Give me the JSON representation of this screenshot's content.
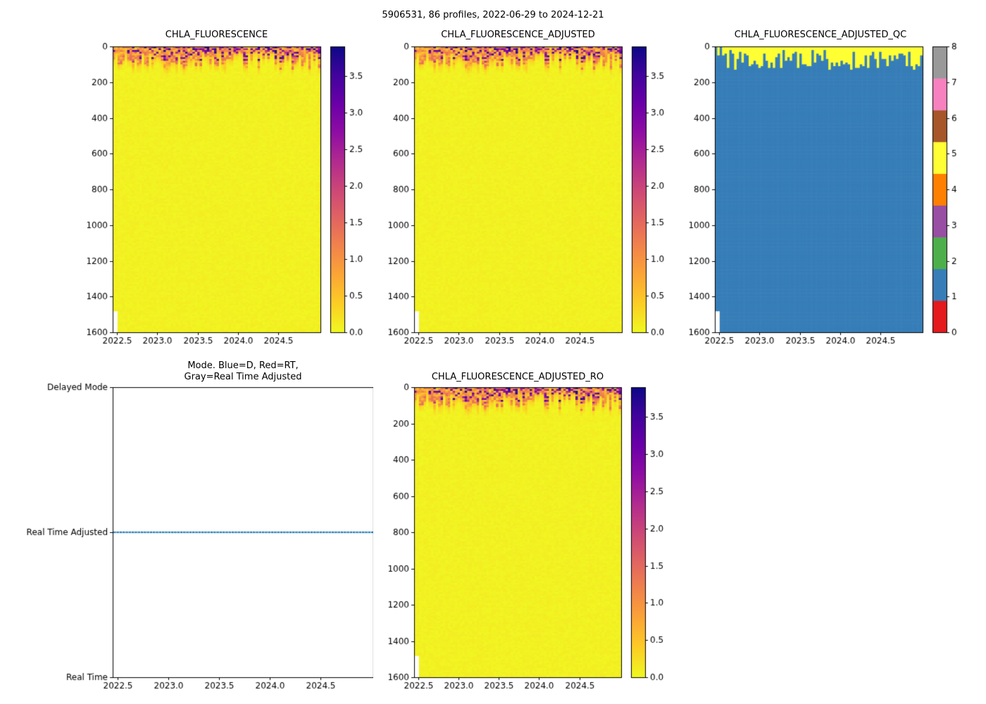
{
  "figure": {
    "title": "5906531, 86 profiles, 2022-06-29 to 2024-12-21",
    "background": "#ffffff",
    "text_color": "#000000"
  },
  "style": {
    "axis_color": "#000000",
    "marker_color": "#1f77b4",
    "plasma_r_stops": [
      [
        0.0,
        "#f0f921"
      ],
      [
        0.1,
        "#fcce25"
      ],
      [
        0.2,
        "#fca636"
      ],
      [
        0.3,
        "#f2844b"
      ],
      [
        0.4,
        "#e16462"
      ],
      [
        0.5,
        "#cc4778"
      ],
      [
        0.6,
        "#b12a90"
      ],
      [
        0.7,
        "#8f0da4"
      ],
      [
        0.8,
        "#6a00a8"
      ],
      [
        0.9,
        "#41049d"
      ],
      [
        1.0,
        "#0d0887"
      ]
    ],
    "qc_colors": [
      "#e41a1c",
      "#377eb8",
      "#4daf4a",
      "#984ea3",
      "#ff7f00",
      "#ffff33",
      "#a65628",
      "#f781bf",
      "#999999"
    ]
  },
  "chart_data": [
    {
      "id": "chla_fluorescence",
      "type": "heatmap",
      "title": "CHLA_FLUORESCENCE",
      "x_range": [
        2022.45,
        2025.02
      ],
      "x_ticks": [
        2022.5,
        2023.0,
        2023.5,
        2024.0,
        2024.5
      ],
      "x_tick_labels": [
        "2022.5",
        "2023.0",
        "2023.5",
        "2024.0",
        "2024.5"
      ],
      "y_range": [
        0,
        1600
      ],
      "y_axis_inverted": true,
      "y_ticks": [
        0,
        200,
        400,
        600,
        800,
        1000,
        1200,
        1400,
        1600
      ],
      "y_tick_labels": [
        "0",
        "200",
        "400",
        "600",
        "800",
        "1000",
        "1200",
        "1400",
        "1600"
      ],
      "n_profiles": 86,
      "n_depth_bins": 160,
      "value_range": [
        0,
        3.9
      ],
      "colorbar_tick_values": [
        0.0,
        0.5,
        1.0,
        1.5,
        2.0,
        2.5,
        3.0,
        3.5
      ],
      "colorbar_tick_labels": [
        "0.0",
        "0.5",
        "1.0",
        "1.5",
        "2.0",
        "2.5",
        "3.0",
        "3.5"
      ],
      "pattern": {
        "seed": 11,
        "background_value": [
          0.02,
          0.12
        ],
        "surface_band_depth": [
          30,
          130
        ],
        "surface_value": [
          0.35,
          1.5
        ],
        "peak_value": [
          2.2,
          3.9
        ],
        "peak_fraction": 0.28,
        "missing_bottom_profiles": 2,
        "missing_below_depth": 1480
      }
    },
    {
      "id": "chla_fluorescence_adjusted",
      "type": "heatmap",
      "title": "CHLA_FLUORESCENCE_ADJUSTED",
      "x_range": [
        2022.45,
        2025.02
      ],
      "x_ticks": [
        2022.5,
        2023.0,
        2023.5,
        2024.0,
        2024.5
      ],
      "x_tick_labels": [
        "2022.5",
        "2023.0",
        "2023.5",
        "2024.0",
        "2024.5"
      ],
      "y_range": [
        0,
        1600
      ],
      "y_axis_inverted": true,
      "y_ticks": [
        0,
        200,
        400,
        600,
        800,
        1000,
        1200,
        1400,
        1600
      ],
      "y_tick_labels": [
        "0",
        "200",
        "400",
        "600",
        "800",
        "1000",
        "1200",
        "1400",
        "1600"
      ],
      "n_profiles": 86,
      "n_depth_bins": 160,
      "value_range": [
        0,
        3.9
      ],
      "colorbar_tick_values": [
        0.0,
        0.5,
        1.0,
        1.5,
        2.0,
        2.5,
        3.0,
        3.5
      ],
      "colorbar_tick_labels": [
        "0.0",
        "0.5",
        "1.0",
        "1.5",
        "2.0",
        "2.5",
        "3.0",
        "3.5"
      ],
      "pattern": {
        "seed": 11,
        "background_value": [
          0.02,
          0.12
        ],
        "surface_band_depth": [
          30,
          130
        ],
        "surface_value": [
          0.35,
          1.5
        ],
        "peak_value": [
          2.2,
          3.9
        ],
        "peak_fraction": 0.28,
        "missing_bottom_profiles": 2,
        "missing_below_depth": 1480
      }
    },
    {
      "id": "chla_fluorescence_adjusted_qc",
      "type": "heatmap_discrete",
      "title": "CHLA_FLUORESCENCE_ADJUSTED_QC",
      "x_range": [
        2022.45,
        2025.02
      ],
      "x_ticks": [
        2022.5,
        2023.0,
        2023.5,
        2024.0,
        2024.5
      ],
      "x_tick_labels": [
        "2022.5",
        "2023.0",
        "2023.5",
        "2024.0",
        "2024.5"
      ],
      "y_range": [
        0,
        1600
      ],
      "y_axis_inverted": true,
      "y_ticks": [
        0,
        200,
        400,
        600,
        800,
        1000,
        1200,
        1400,
        1600
      ],
      "y_tick_labels": [
        "0",
        "200",
        "400",
        "600",
        "800",
        "1000",
        "1200",
        "1400",
        "1600"
      ],
      "n_profiles": 86,
      "n_depth_bins": 160,
      "value_range": [
        0,
        8
      ],
      "colorbar_tick_values": [
        0,
        1,
        2,
        3,
        4,
        5,
        6,
        7,
        8
      ],
      "colorbar_tick_labels": [
        "0",
        "1",
        "2",
        "3",
        "4",
        "5",
        "6",
        "7",
        "8"
      ],
      "qc_values": {
        "surface_qc": 5,
        "deep_qc": 1
      },
      "pattern": {
        "seed": 23,
        "surface_band_depth": [
          20,
          130
        ],
        "deep_spike_fraction": 0.08,
        "no_band_profiles": 3,
        "missing_bottom_profiles": 2,
        "missing_below_depth": 1480
      }
    },
    {
      "id": "mode",
      "type": "scatter",
      "title_lines": [
        "Mode. Blue=D, Red=RT,",
        "Gray=Real Time Adjusted"
      ],
      "x_range": [
        2022.45,
        2025.02
      ],
      "x_ticks": [
        2022.5,
        2023.0,
        2023.5,
        2024.0,
        2024.5
      ],
      "x_tick_labels": [
        "2022.5",
        "2023.0",
        "2023.5",
        "2024.0",
        "2024.5"
      ],
      "y_categories": [
        "Real Time",
        "Real Time Adjusted",
        "Delayed Mode"
      ],
      "mode_value": "Real Time Adjusted",
      "n_points": 86,
      "marker_color": "#1f77b4"
    },
    {
      "id": "chla_fluorescence_adjusted_ro",
      "type": "heatmap",
      "title": "CHLA_FLUORESCENCE_ADJUSTED_RO",
      "x_range": [
        2022.45,
        2025.02
      ],
      "x_ticks": [
        2022.5,
        2023.0,
        2023.5,
        2024.0,
        2024.5
      ],
      "x_tick_labels": [
        "2022.5",
        "2023.0",
        "2023.5",
        "2024.0",
        "2024.5"
      ],
      "y_range": [
        0,
        1600
      ],
      "y_axis_inverted": true,
      "y_ticks": [
        0,
        200,
        400,
        600,
        800,
        1000,
        1200,
        1400,
        1600
      ],
      "y_tick_labels": [
        "0",
        "200",
        "400",
        "600",
        "800",
        "1000",
        "1200",
        "1400",
        "1600"
      ],
      "n_profiles": 86,
      "n_depth_bins": 160,
      "value_range": [
        0,
        3.9
      ],
      "colorbar_tick_values": [
        0.0,
        0.5,
        1.0,
        1.5,
        2.0,
        2.5,
        3.0,
        3.5
      ],
      "colorbar_tick_labels": [
        "0.0",
        "0.5",
        "1.0",
        "1.5",
        "2.0",
        "2.5",
        "3.0",
        "3.5"
      ],
      "pattern": {
        "seed": 11,
        "background_value": [
          0.02,
          0.12
        ],
        "surface_band_depth": [
          30,
          130
        ],
        "surface_value": [
          0.35,
          1.5
        ],
        "peak_value": [
          2.2,
          3.9
        ],
        "peak_fraction": 0.28,
        "missing_bottom_profiles": 2,
        "missing_below_depth": 1480
      }
    }
  ]
}
